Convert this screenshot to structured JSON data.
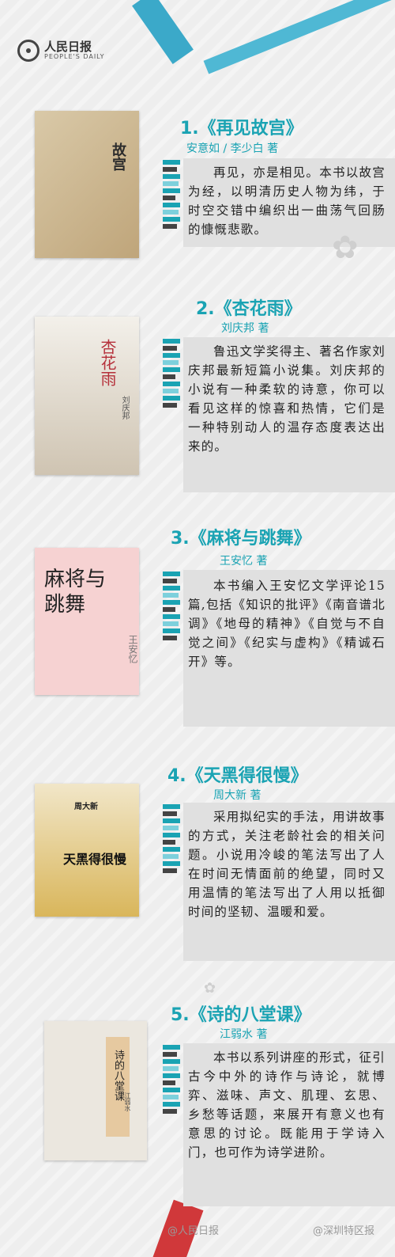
{
  "brand": {
    "name_cn": "人民日报",
    "name_en": "PEOPLE'S DAILY"
  },
  "colors": {
    "accent": "#1aa3b3",
    "ribbon": "#3ba9c9",
    "panel": "#e0e0e0",
    "text": "#222222"
  },
  "books": [
    {
      "index": "1.",
      "title": "《再见故宫》",
      "author": "安意如 / 李少白 著",
      "description": "再见，亦是相见。本书以故宫为经，以明清历史人物为纬，于时空交错中编织出一曲荡气回肠的慷慨悲歌。"
    },
    {
      "index": "2.",
      "title": "《杏花雨》",
      "author": "刘庆邦 著",
      "description": "鲁迅文学奖得主、著名作家刘庆邦最新短篇小说集。刘庆邦的小说有一种柔软的诗意，你可以看见这样的惊喜和热情，它们是一种特别动人的温存态度表达出来的。"
    },
    {
      "index": "3.",
      "title": "《麻将与跳舞》",
      "author": "王安忆 著",
      "description": "本书编入王安忆文学评论15 篇,包括《知识的批评》《南音谱北调》《地母的精神》《自觉与不自觉之间》《纪实与虚构》《精诚石开》等。"
    },
    {
      "index": "4.",
      "title": "《天黑得很慢》",
      "author": "周大新 著",
      "description": "采用拟纪实的手法，用讲故事的方式，关注老龄社会的相关问题。小说用冷峻的笔法写出了人在时间无情面前的绝望，同时又用温情的笔法写出了人用以抵御时间的坚韧、温暖和爱。"
    },
    {
      "index": "5.",
      "title": "《诗的八堂课》",
      "author": "江弱水 著",
      "description": "本书以系列讲座的形式，征引古今中外的诗作与诗论，就博弈、滋味、声文、肌理、玄思、乡愁等话题，来展开有意义也有意思的讨论。既能用于学诗入门，也可作为诗学进阶。"
    }
  ],
  "covers": [
    {
      "text": "故宫",
      "author_text": ""
    },
    {
      "text": "杏花雨",
      "author_text": "刘庆邦"
    },
    {
      "text": "麻将与跳舞",
      "author_text": "王安忆"
    },
    {
      "text": "天黑得很慢",
      "author_text": "周大新"
    },
    {
      "text": "诗的八堂课",
      "author_text": "江弱水"
    }
  ],
  "watermarks": [
    "@人民日报",
    "@深圳特区报"
  ]
}
